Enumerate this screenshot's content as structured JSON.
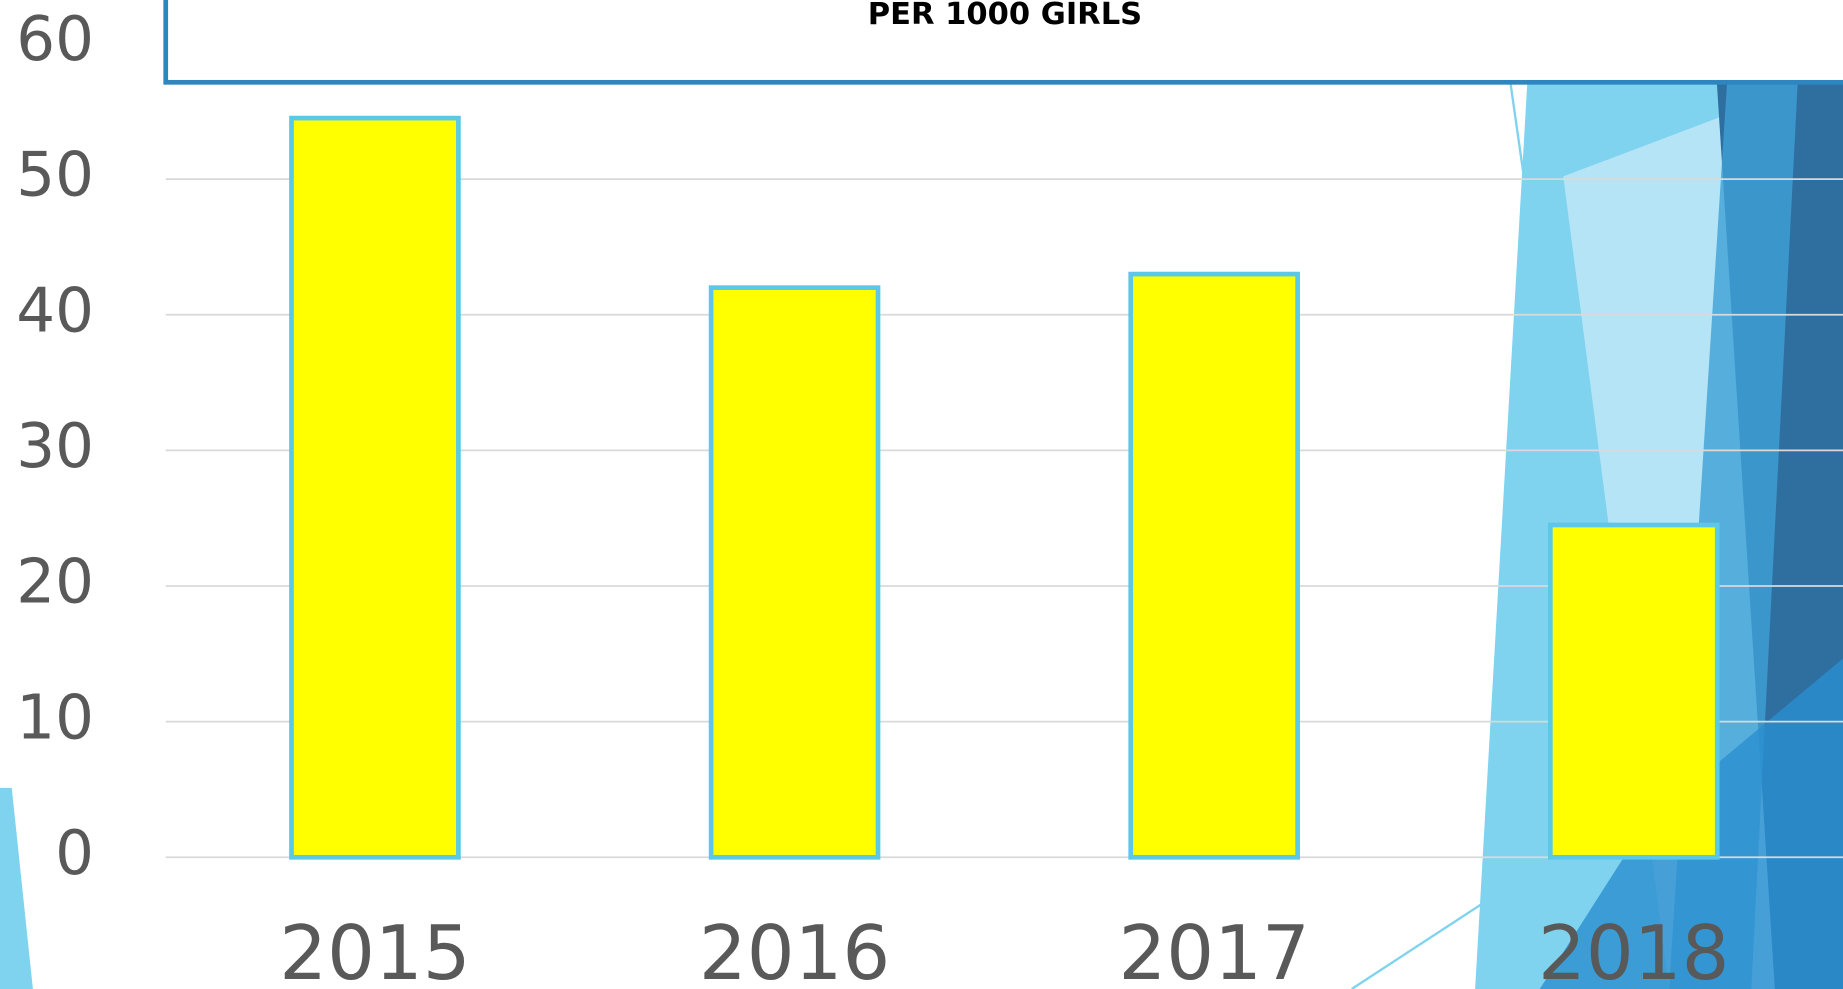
{
  "chart_data": {
    "type": "bar",
    "title": "PER 1000 GIRLS",
    "categories": [
      "2015",
      "2016",
      "2017",
      "2018"
    ],
    "values": [
      54.5,
      42,
      43,
      24.5
    ],
    "color": "#ffff00",
    "ylim": [
      0,
      60
    ],
    "yticks": [
      0,
      10,
      20,
      30,
      40,
      50,
      60
    ],
    "grid": true
  }
}
